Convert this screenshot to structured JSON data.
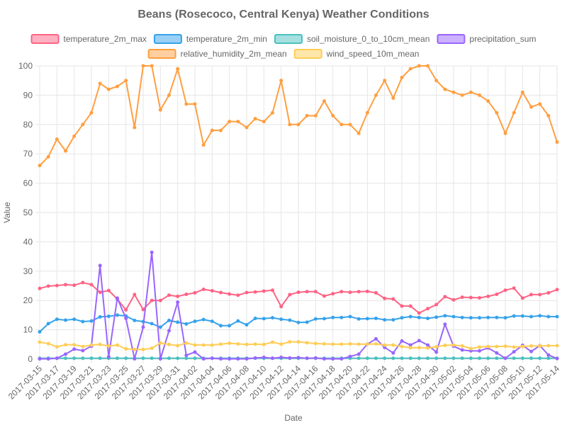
{
  "chart_data": {
    "type": "line",
    "title": "Beans (Rosecoco, Central Kenya) Weather Conditions",
    "xlabel": "Date",
    "ylabel": "Value",
    "ylim": [
      0,
      100
    ],
    "yticks": [
      0,
      10,
      20,
      30,
      40,
      50,
      60,
      70,
      80,
      90,
      100
    ],
    "grid": true,
    "legend_position": "top",
    "x": [
      "2017-03-15",
      "2017-03-16",
      "2017-03-17",
      "2017-03-18",
      "2017-03-19",
      "2017-03-20",
      "2017-03-21",
      "2017-03-22",
      "2017-03-23",
      "2017-03-24",
      "2017-03-25",
      "2017-03-26",
      "2017-03-27",
      "2017-03-28",
      "2017-03-29",
      "2017-03-30",
      "2017-03-31",
      "2017-04-01",
      "2017-04-02",
      "2017-04-03",
      "2017-04-04",
      "2017-04-05",
      "2017-04-06",
      "2017-04-07",
      "2017-04-08",
      "2017-04-09",
      "2017-04-10",
      "2017-04-11",
      "2017-04-12",
      "2017-04-13",
      "2017-04-14",
      "2017-04-15",
      "2017-04-16",
      "2017-04-17",
      "2017-04-18",
      "2017-04-19",
      "2017-04-20",
      "2017-04-21",
      "2017-04-22",
      "2017-04-23",
      "2017-04-24",
      "2017-04-25",
      "2017-04-26",
      "2017-04-27",
      "2017-04-28",
      "2017-04-29",
      "2017-04-30",
      "2017-05-01",
      "2017-05-02",
      "2017-05-03",
      "2017-05-04",
      "2017-05-05",
      "2017-05-06",
      "2017-05-07",
      "2017-05-08",
      "2017-05-09",
      "2017-05-10",
      "2017-05-11",
      "2017-05-12",
      "2017-05-13",
      "2017-05-14"
    ],
    "x_tick_labels": [
      "2017-03-15",
      "2017-03-17",
      "2017-03-19",
      "2017-03-21",
      "2017-03-23",
      "2017-03-25",
      "2017-03-27",
      "2017-03-29",
      "2017-03-31",
      "2017-04-02",
      "2017-04-04",
      "2017-04-06",
      "2017-04-08",
      "2017-04-10",
      "2017-04-12",
      "2017-04-14",
      "2017-04-16",
      "2017-04-18",
      "2017-04-20",
      "2017-04-22",
      "2017-04-24",
      "2017-04-26",
      "2017-04-28",
      "2017-04-30",
      "2017-05-02",
      "2017-05-04",
      "2017-05-06",
      "2017-05-08",
      "2017-05-10",
      "2017-05-12",
      "2017-05-14"
    ],
    "series": [
      {
        "name": "temperature_2m_max",
        "color": "#ff6384",
        "values": [
          24.1,
          24.9,
          25.1,
          25.4,
          25.2,
          26.1,
          25.4,
          22.8,
          23.4,
          20.5,
          16.8,
          22.0,
          16.9,
          20.0,
          20.0,
          21.8,
          21.4,
          22.1,
          22.6,
          23.8,
          23.3,
          22.7,
          22.2,
          21.8,
          22.7,
          22.9,
          23.2,
          23.5,
          17.9,
          22.0,
          22.8,
          23.0,
          23.0,
          21.5,
          22.3,
          23.0,
          22.8,
          23.0,
          23.1,
          22.6,
          20.7,
          20.5,
          18.1,
          18.1,
          15.7,
          17.2,
          18.6,
          21.3,
          20.2,
          21.1,
          21.0,
          20.9,
          21.4,
          22.1,
          23.5,
          24.2,
          20.8,
          22.0,
          22.0,
          22.6,
          23.7
        ]
      },
      {
        "name": "temperature_2m_min",
        "color": "#36a2eb",
        "values": [
          9.3,
          12.1,
          13.6,
          13.3,
          13.6,
          12.8,
          13.0,
          14.4,
          14.6,
          15.0,
          14.7,
          13.2,
          12.8,
          12.1,
          10.9,
          13.2,
          12.6,
          12.0,
          12.9,
          13.5,
          12.9,
          11.4,
          11.4,
          13.0,
          11.7,
          13.9,
          13.8,
          14.1,
          13.6,
          13.3,
          12.5,
          12.6,
          13.7,
          13.8,
          14.2,
          14.2,
          14.5,
          13.7,
          13.8,
          13.9,
          13.4,
          13.4,
          14.1,
          14.5,
          14.2,
          13.9,
          14.3,
          14.8,
          14.5,
          14.2,
          14.1,
          14.1,
          14.2,
          14.2,
          14.1,
          14.7,
          14.7,
          14.5,
          14.8,
          14.5,
          14.5
        ]
      },
      {
        "name": "soil_moisture_0_to_10cm_mean",
        "color": "#4bc0c0",
        "values": [
          0.3,
          0.3,
          0.3,
          0.3,
          0.3,
          0.3,
          0.3,
          0.3,
          0.3,
          0.3,
          0.3,
          0.3,
          0.3,
          0.3,
          0.3,
          0.3,
          0.3,
          0.3,
          0.3,
          0.3,
          0.3,
          0.3,
          0.3,
          0.3,
          0.3,
          0.3,
          0.3,
          0.3,
          0.3,
          0.3,
          0.3,
          0.3,
          0.3,
          0.3,
          0.3,
          0.3,
          0.3,
          0.3,
          0.3,
          0.3,
          0.3,
          0.3,
          0.3,
          0.3,
          0.3,
          0.3,
          0.3,
          0.3,
          0.3,
          0.3,
          0.3,
          0.3,
          0.3,
          0.3,
          0.3,
          0.3,
          0.3,
          0.3,
          0.3,
          0.3,
          0.3
        ]
      },
      {
        "name": "precipitation_sum",
        "color": "#9966ff",
        "values": [
          0.1,
          0.1,
          0.3,
          1.7,
          3.4,
          2.9,
          4.4,
          31.9,
          0.8,
          20.8,
          13.9,
          0.1,
          10.9,
          36.4,
          0.1,
          9.7,
          19.4,
          1.3,
          2.4,
          0.1,
          0.3,
          0.1,
          0.1,
          0.1,
          0.1,
          0.4,
          0.6,
          0.3,
          0.6,
          0.4,
          0.5,
          0.3,
          0.4,
          0.1,
          0.1,
          0.1,
          0.9,
          1.7,
          5.1,
          6.9,
          4.0,
          2.1,
          6.2,
          4.8,
          6.3,
          4.8,
          2.4,
          11.9,
          4.4,
          3.1,
          2.8,
          2.8,
          3.8,
          2.1,
          0.3,
          2.5,
          4.7,
          2.6,
          4.6,
          1.4,
          0.2
        ]
      },
      {
        "name": "relative_humidity_2m_mean",
        "color": "#ff9f40",
        "values": [
          66,
          69,
          75,
          71,
          76,
          80,
          84,
          94,
          92,
          93,
          95,
          79,
          100,
          100,
          85,
          90,
          99,
          87,
          87,
          73,
          78,
          78,
          81,
          81,
          79,
          82,
          81,
          84,
          95,
          80,
          80,
          83,
          83,
          88,
          83,
          80,
          80,
          77,
          84,
          90,
          95,
          89,
          96,
          99,
          100,
          100,
          95,
          92,
          91,
          90,
          91,
          90,
          88,
          84,
          77,
          84,
          91,
          86,
          87,
          83,
          74
        ]
      },
      {
        "name": "wind_speed_10m_mean",
        "color": "#ffcd56",
        "values": [
          5.8,
          5.3,
          4.2,
          4.9,
          4.9,
          4.3,
          4.8,
          5.0,
          4.5,
          4.8,
          3.5,
          3.3,
          3.3,
          3.7,
          5.5,
          5.0,
          4.6,
          5.5,
          4.8,
          4.8,
          4.8,
          5.1,
          5.4,
          5.2,
          5.0,
          5.1,
          5.0,
          5.8,
          5.1,
          5.9,
          5.9,
          5.6,
          5.3,
          5.2,
          5.1,
          5.1,
          5.2,
          5.1,
          5.1,
          5.2,
          4.8,
          4.8,
          4.3,
          3.9,
          3.9,
          3.8,
          4.2,
          4.7,
          4.8,
          4.5,
          3.6,
          4.1,
          4.3,
          4.3,
          4.4,
          4.1,
          4.3,
          4.5,
          4.5,
          4.6,
          4.6
        ]
      }
    ]
  }
}
